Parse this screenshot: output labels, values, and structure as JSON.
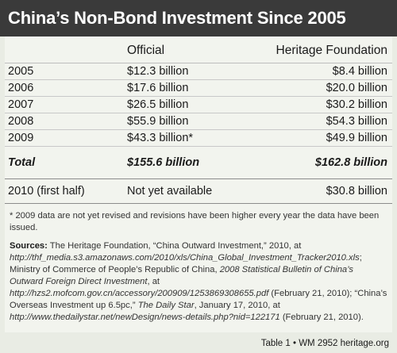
{
  "title": "China’s Non-Bond Investment Since 2005",
  "columns": [
    "",
    "Official",
    "Heritage Foundation"
  ],
  "rows": [
    {
      "year": "2005",
      "official": "$12.3 billion",
      "heritage": "$8.4 billion"
    },
    {
      "year": "2006",
      "official": "$17.6 billion",
      "heritage": "$20.0 billion"
    },
    {
      "year": "2007",
      "official": "$26.5 billion",
      "heritage": "$30.2 billion"
    },
    {
      "year": "2008",
      "official": "$55.9 billion",
      "heritage": "$54.3 billion"
    },
    {
      "year": "2009",
      "official": "$43.3 billion*",
      "heritage": "$49.9 billion"
    }
  ],
  "total": {
    "label": "Total",
    "official": "$155.6 billion",
    "heritage": "$162.8 billion"
  },
  "last_row": {
    "year": "2010 (first half)",
    "official": "Not yet available",
    "heritage": "$30.8 billion"
  },
  "footnote": "* 2009 data are not yet revised and revisions have been higher every year the data have been issued.",
  "sources": {
    "label": "Sources:",
    "p1": " The Heritage Foundation, “China Outward Investment,” 2010, at ",
    "u1": "http://thf_media.s3.amazonaws.com/2010/xls/China_Global_Investment_Tracker2010.xls",
    "p2": "; Ministry of Commerce of People’s Republic of China, ",
    "t1": "2008 Statistical Bulletin of China’s Outward Foreign Direct Investment",
    "p3": ", at ",
    "u2": "http://hzs2.mofcom.gov.cn/accessory/200909/1253869308655.pdf",
    "p4": " (February 21, 2010); “China’s Overseas Investment up 6.5pc,” ",
    "t2": "The Daily Star",
    "p5": ", January 17, 2010, at ",
    "u3": "http://www.thedailystar.net/newDesign/news-details.php?nid=122171",
    "p6": " (February 21, 2010)."
  },
  "credit": {
    "table": "Table 1 • WM 2952",
    "brand": "heritage.org"
  }
}
